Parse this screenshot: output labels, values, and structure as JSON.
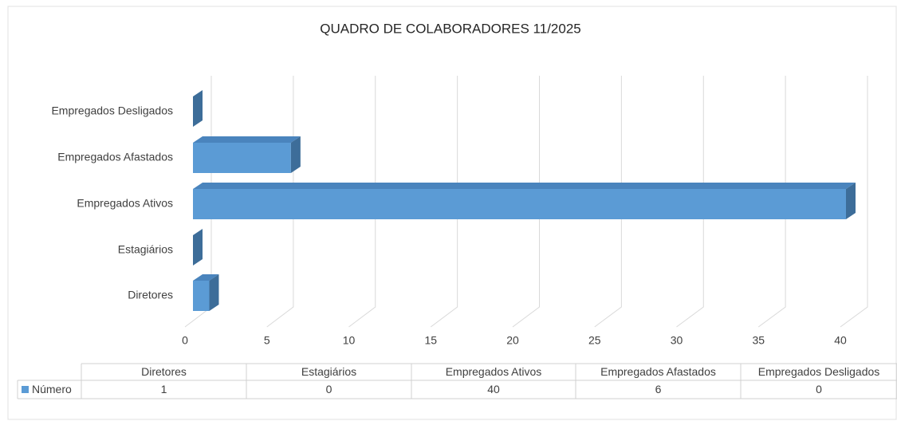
{
  "chart_data": {
    "type": "bar3d_horizontal",
    "title": "QUADRO DE COLABORADORES 11/2025",
    "categories": [
      "Diretores",
      "Estagiários",
      "Empregados Ativos",
      "Empregados Afastados",
      "Empregados Desligados"
    ],
    "series": [
      {
        "name": "Número",
        "color": "#5b9bd5",
        "values": [
          1,
          0,
          40,
          6,
          0
        ]
      }
    ],
    "xlim": [
      0,
      40
    ],
    "xticks": [
      0,
      5,
      10,
      15,
      20,
      25,
      30,
      35,
      40
    ],
    "grid": true,
    "data_table": true
  }
}
